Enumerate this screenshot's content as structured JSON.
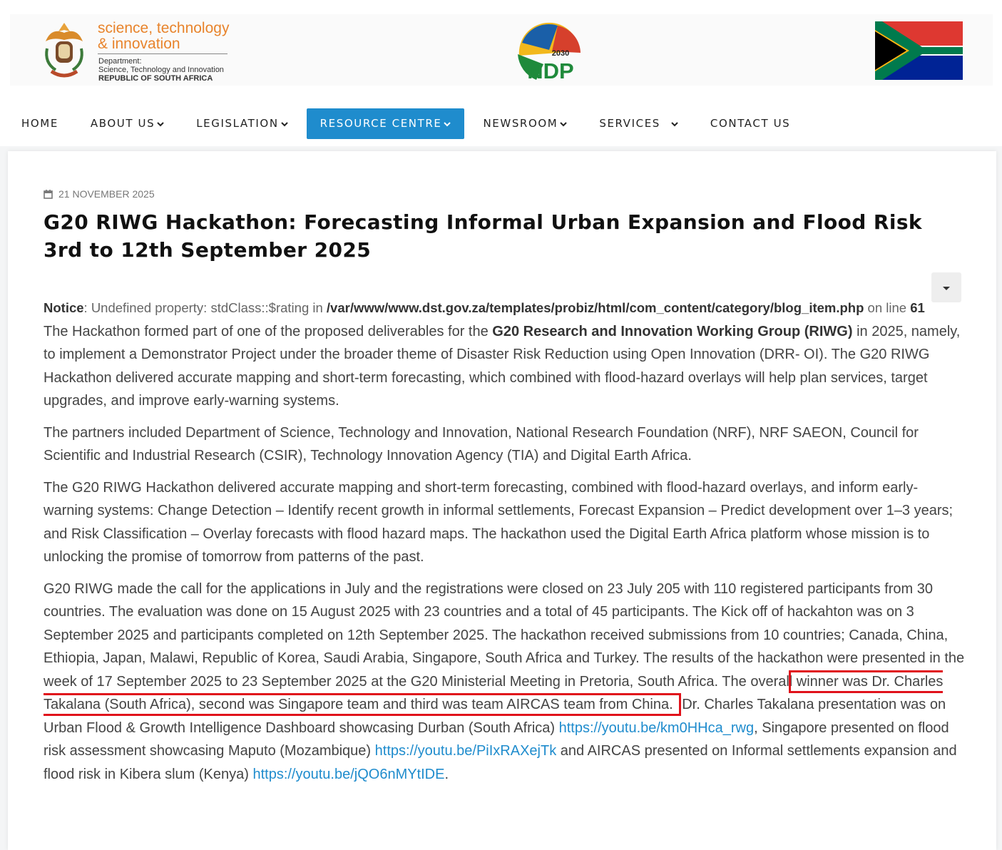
{
  "header": {
    "logo_line1": "science, technology",
    "logo_line2": "& innovation",
    "department_label": "Department:",
    "department_name": "Science, Technology and Innovation",
    "country": "REPUBLIC OF SOUTH AFRICA",
    "ndp_year": "2030",
    "ndp_text": "NDP"
  },
  "nav": {
    "items": [
      "HOME",
      "ABOUT US",
      "LEGISLATION",
      "RESOURCE CENTRE",
      "NEWSROOM",
      "SERVICES",
      "CONTACT US"
    ]
  },
  "article": {
    "date": "21 NOVEMBER 2025",
    "title": "G20 RIWG Hackathon: Forecasting Informal Urban Expansion and Flood Risk 3rd to 12th September 2025",
    "notice": {
      "label": "Notice",
      "message": ": Undefined property: stdClass::$rating in",
      "path": "/var/www/www.dst.gov.za/templates/probiz/html/com_content/category/blog_item.php",
      "line_label": "on line",
      "line_number": 61
    },
    "paragraph1": {
      "before": "The Hackathon formed part of one of the proposed deliverables for the",
      "bold": "G20 Research and Innovation Working Group (RIWG)",
      "after": "in 2025, namely, to implement a Demonstrator Project under the broader theme of Disaster Risk Reduction using Open Innovation (DRR- OI). The G20 RIWG Hackathon delivered accurate mapping and short-term forecasting, which combined with flood-hazard overlays will help plan services, target upgrades, and improve early-warning systems."
    },
    "paragraph2": "The partners included Department of Science, Technology and Innovation, National Research Foundation (NRF), NRF SAEON, Council for Scientific and Industrial Research (CSIR), Technology Innovation Agency (TIA) and Digital Earth Africa.",
    "paragraph3": "The G20 RIWG Hackathon delivered accurate mapping and short-term forecasting, combined with flood-hazard overlays, and inform early-warning systems: Change Detection – Identify recent growth in informal settlements, Forecast Expansion – Predict development over 1–3 years; and Risk Classification – Overlay forecasts with flood hazard maps. The hackathon used the Digital Earth Africa platform whose mission is to unlocking the promise of tomorrow from patterns of the past.",
    "paragraph4": {
      "intro": "G20 RIWG made the call for the applications in July and the registrations were closed on 23 July 205 with 110 registered participants from 30 countries. The evaluation was done on 15 August 2025 with 23 countries and a total of 45 participants. The Kick off of hackahton was on 3 September 2025 and participants completed on 12th September 2025. The hackathon received submissions from 10 countries; Canada, China, Ethiopia, Japan, Malawi, Republic of Korea, Saudi Arabia, Singapore, South Africa and Turkey. The results of the hackathon were presented in the week of 17 September 2025 to 23 September 2025 at the G20 Ministerial Meeting in Pretoria, South Africa. The overall",
      "highlight": "winner was Dr. Charles Takalana (South Africa), second was Singapore team and third was team AIRCAS team from China.",
      "text1": "Dr. Charles Takalana presentation was on Urban Flood & Growth Intelligence Dashboard showcasing Durban (South Africa)",
      "link1": "https://youtu.be/km0HHca_rwg",
      "text2": ", Singapore presented on flood risk assessment showcasing Maputo (Mozambique)",
      "link2": "https://youtu.be/PiIxRAXejTk",
      "text3": "and AIRCAS presented on Informal settlements expansion and flood risk in Kibera slum (Kenya)",
      "link3": "https://youtu.be/jQO6nMYtIDE",
      "end": "."
    }
  }
}
